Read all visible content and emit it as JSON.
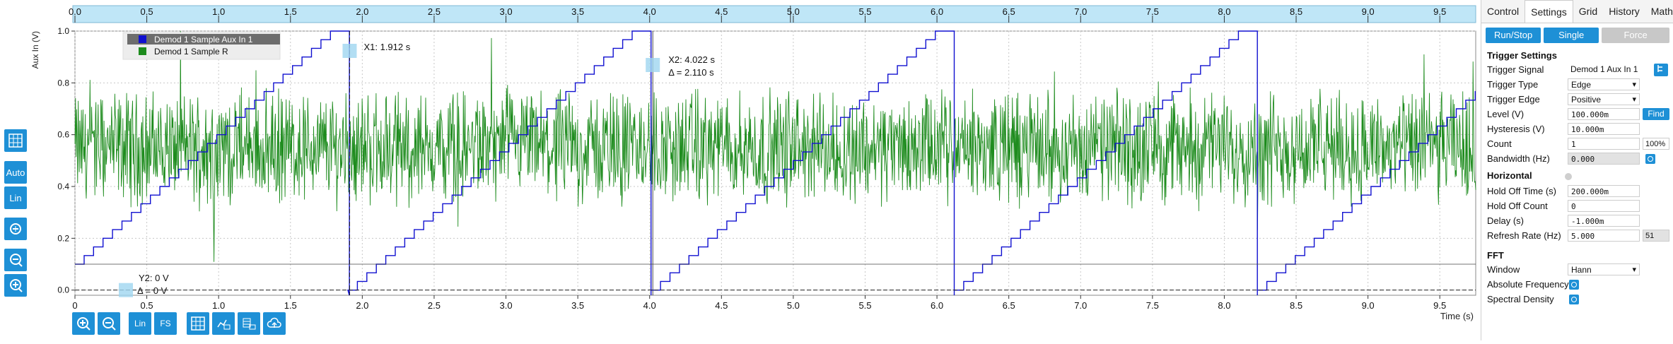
{
  "left_toolbar": {
    "auto_label": "Auto",
    "lin_label": "Lin"
  },
  "bottom_toolbar": {
    "lin_label": "Lin",
    "fs_label": "FS"
  },
  "plot": {
    "ylabel": "Aux In (V)",
    "xlabel": "Time (s)",
    "x_ticks": [
      "0.0",
      "0.5",
      "1.0",
      "1.5",
      "2.0",
      "2.5",
      "3.0",
      "3.5",
      "4.0",
      "4.5",
      "5.0",
      "5.5",
      "6.0",
      "6.5",
      "7.0",
      "7.5",
      "8.0",
      "8.5",
      "9.0",
      "9.5"
    ],
    "bottom_x_ticks": [
      "0",
      "0.5",
      "1.0",
      "1.5",
      "2.0",
      "2.5",
      "3.0",
      "3.5",
      "4.0",
      "4.5",
      "5.0",
      "5.5",
      "6.0",
      "6.5",
      "7.0",
      "7.5",
      "8.0",
      "8.5",
      "9.0",
      "9.5"
    ],
    "y_ticks": [
      "1.0",
      "0.8",
      "0.6",
      "0.4",
      "0.2",
      "0.0"
    ],
    "legend": [
      {
        "name": "Demod 1 Sample Aux In 1",
        "color": "#1010d0"
      },
      {
        "name": "Demod 1 Sample R",
        "color": "#1e8c1e"
      }
    ],
    "cursors": {
      "x1": "X1: 1.912 s",
      "x2": "X2: 4.022 s",
      "dx": "Δ = 2.110 s",
      "y2": "Y2: 0 V",
      "dy": "Δ = 0 V"
    }
  },
  "chart_data": {
    "type": "line",
    "xlabel": "Time (s)",
    "ylabel": "Aux In (V)",
    "xlim": [
      0.0,
      9.75
    ],
    "ylim": [
      -0.02,
      1.0
    ],
    "grid": true,
    "legend_position": "top-left",
    "series": [
      {
        "name": "Demod 1 Sample Aux In 1",
        "color": "#1010d0",
        "shape": "staircase ramp 0.0→1.0 V, period 2.11 s",
        "ramp_starts": [
          -0.2,
          1.9,
          4.01,
          6.12,
          8.23
        ]
      },
      {
        "name": "Demod 1 Sample R",
        "color": "#1e8c1e",
        "shape": "noisy signal around 0.55 V, range approx 0.05–1.0 V"
      }
    ],
    "cursors": {
      "x1": 1.912,
      "x2": 4.022,
      "y2": 0.0
    }
  },
  "panel": {
    "tabs": [
      "Control",
      "Settings",
      "Grid",
      "History",
      "Math"
    ],
    "buttons": {
      "run_stop": "Run/Stop",
      "single": "Single",
      "force": "Force"
    },
    "trigger_title": "Trigger Settings",
    "trigger_signal_label": "Trigger Signal",
    "trigger_signal": "Demod 1 Aux In 1",
    "trigger_type_label": "Trigger Type",
    "trigger_type": "Edge",
    "trigger_edge_label": "Trigger Edge",
    "trigger_edge": "Positive",
    "level_label": "Level (V)",
    "level": "100.000m",
    "find": "Find",
    "hysteresis_label": "Hysteresis (V)",
    "hysteresis": "10.000m",
    "count_label": "Count",
    "count": "1",
    "count_pct": "100%",
    "bandwidth_label": "Bandwidth (Hz)",
    "bandwidth": "0.000",
    "horizontal_title": "Horizontal",
    "holdoff_time_label": "Hold Off Time (s)",
    "holdoff_time": "200.000m",
    "holdoff_count_label": "Hold Off Count",
    "holdoff_count": "0",
    "delay_label": "Delay (s)",
    "delay": "-1.000m",
    "refresh_label": "Refresh Rate (Hz)",
    "refresh": "5.000",
    "refresh_side": "51",
    "fft_title": "FFT",
    "window_label": "Window",
    "window": "Hann",
    "abs_freq_label": "Absolute Frequency",
    "spectral_label": "Spectral Density"
  }
}
